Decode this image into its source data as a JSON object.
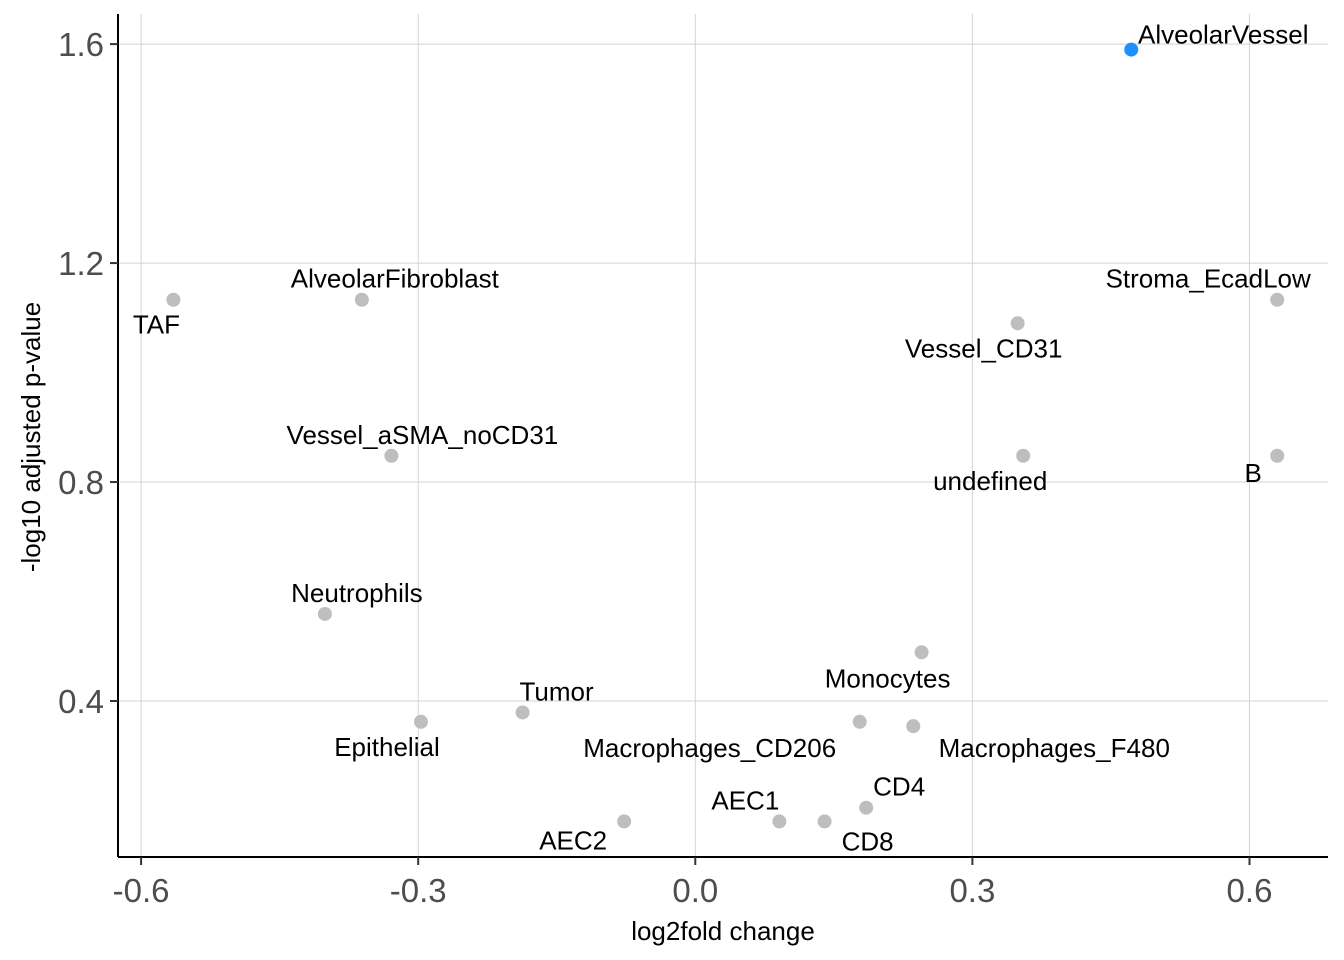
{
  "chart_data": {
    "type": "scatter",
    "title": "",
    "xlabel": "log2fold change",
    "ylabel": "-log10 adjusted p-value",
    "xlim": [
      -0.625,
      0.685
    ],
    "ylim": [
      0.115,
      1.655
    ],
    "x_ticks": [
      -0.6,
      -0.3,
      0.0,
      0.3,
      0.6
    ],
    "x_tick_labels": [
      "-0.6",
      "-0.3",
      "0.0",
      "0.3",
      "0.6"
    ],
    "y_ticks": [
      0.4,
      0.8,
      1.2,
      1.6
    ],
    "y_tick_labels": [
      "0.4",
      "0.8",
      "1.2",
      "1.6"
    ],
    "grid": true,
    "colors": {
      "default": "#bebebe",
      "highlight": "#1e90ff",
      "grid": "#d3d3d3",
      "axis": "#000000"
    },
    "points": [
      {
        "label": "AlveolarVessel",
        "x": 0.472,
        "y": 1.59,
        "highlight": true
      },
      {
        "label": "TAF",
        "x": -0.565,
        "y": 1.133,
        "highlight": false
      },
      {
        "label": "AlveolarFibroblast",
        "x": -0.361,
        "y": 1.133,
        "highlight": false
      },
      {
        "label": "Stroma_EcadLow",
        "x": 0.63,
        "y": 1.133,
        "highlight": false
      },
      {
        "label": "Vessel_CD31",
        "x": 0.349,
        "y": 1.09,
        "highlight": false
      },
      {
        "label": "Vessel_aSMA_noCD31",
        "x": -0.329,
        "y": 0.848,
        "highlight": false
      },
      {
        "label": "undefined",
        "x": 0.355,
        "y": 0.848,
        "highlight": false
      },
      {
        "label": "B",
        "x": 0.63,
        "y": 0.848,
        "highlight": false
      },
      {
        "label": "Neutrophils",
        "x": -0.401,
        "y": 0.559,
        "highlight": false
      },
      {
        "label": "Monocytes",
        "x": 0.245,
        "y": 0.489,
        "highlight": false
      },
      {
        "label": "Tumor",
        "x": -0.187,
        "y": 0.379,
        "highlight": false
      },
      {
        "label": "Epithelial",
        "x": -0.297,
        "y": 0.362,
        "highlight": false
      },
      {
        "label": "Macrophages_CD206",
        "x": 0.178,
        "y": 0.362,
        "highlight": false
      },
      {
        "label": "Macrophages_F480",
        "x": 0.236,
        "y": 0.354,
        "highlight": false
      },
      {
        "label": "CD4",
        "x": 0.185,
        "y": 0.205,
        "highlight": false
      },
      {
        "label": "AEC2",
        "x": -0.077,
        "y": 0.18,
        "highlight": false
      },
      {
        "label": "AEC1",
        "x": 0.091,
        "y": 0.18,
        "highlight": false
      },
      {
        "label": "CD8",
        "x": 0.14,
        "y": 0.18,
        "highlight": false
      }
    ]
  }
}
